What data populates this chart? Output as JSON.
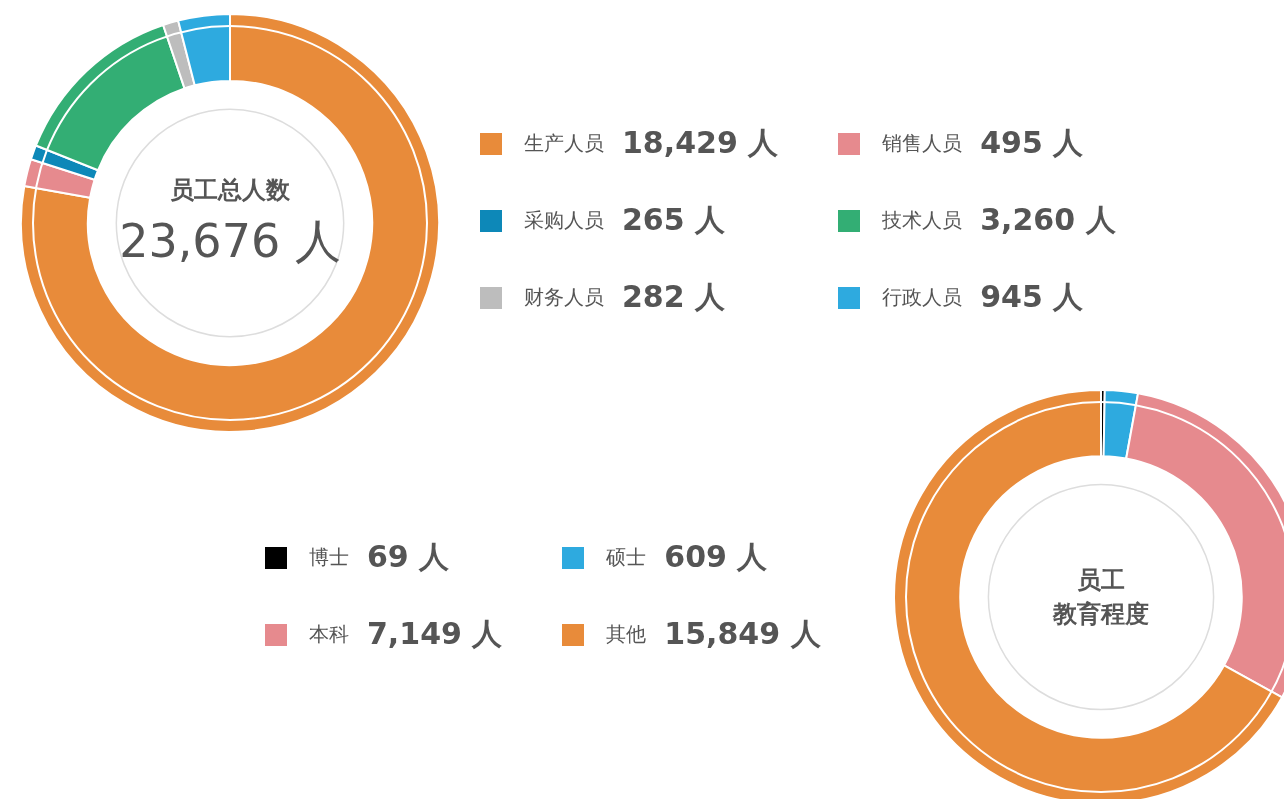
{
  "chart_data": [
    {
      "type": "donut",
      "title": "员工总人数",
      "annotations": [
        "23,676 人"
      ],
      "categories": [
        "生产人员",
        "销售人员",
        "采购人员",
        "技术人员",
        "财务人员",
        "行政人员"
      ],
      "values": [
        18429,
        495,
        265,
        3260,
        282,
        945
      ],
      "value_labels": [
        "18,429 人",
        "495 人",
        "265 人",
        "3,260 人",
        "282 人",
        "945 人"
      ],
      "colors": [
        "#e88b3a",
        "#e68a8e",
        "#0d88b8",
        "#33ae74",
        "#bdbdbd",
        "#2eaadf"
      ],
      "legend": "right"
    },
    {
      "type": "donut",
      "title": "员工",
      "subtitle": "教育程度",
      "categories": [
        "博士",
        "硕士",
        "本科",
        "其他"
      ],
      "values": [
        69,
        609,
        7149,
        15849
      ],
      "value_labels": [
        "69 人",
        "609 人",
        "7,149 人",
        "15,849 人"
      ],
      "colors": [
        "#000000",
        "#2eaadf",
        "#e68a8e",
        "#e88b3a"
      ],
      "legend": "left"
    }
  ]
}
